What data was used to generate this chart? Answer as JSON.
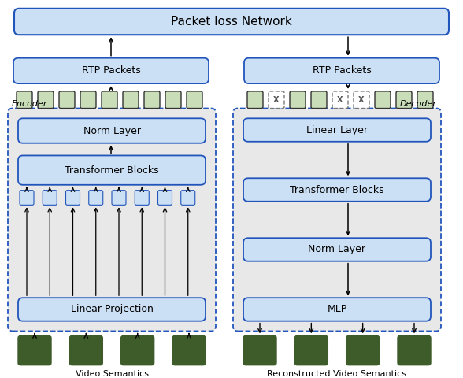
{
  "title": "Packet loss Network",
  "fig_width": 5.88,
  "fig_height": 4.8,
  "dpi": 100,
  "bg_color": "#ffffff",
  "box_blue_fill": "#cce0f5",
  "box_blue_edge": "#2255bb",
  "box_green_dark": "#3d5c2a",
  "box_green_light": "#c8ddb8",
  "box_green_edge": "#333333",
  "box_outer_fill": "#e8e8e8",
  "box_outer_edge": "#2255bb",
  "encoder_label": "Encoder",
  "decoder_label": "Decoder",
  "left_rtp": "RTP Packets",
  "right_rtp": "RTP Packets",
  "left_blocks": [
    "Norm Layer",
    "Transformer Blocks",
    "Linear Projection"
  ],
  "right_blocks": [
    "Linear Layer",
    "Transformer Blocks",
    "Norm Layer",
    "MLP"
  ],
  "left_footer": "Video Semantics",
  "right_footer": "Reconstructed Video Semantics",
  "lost_indices": [
    1,
    4,
    5
  ]
}
